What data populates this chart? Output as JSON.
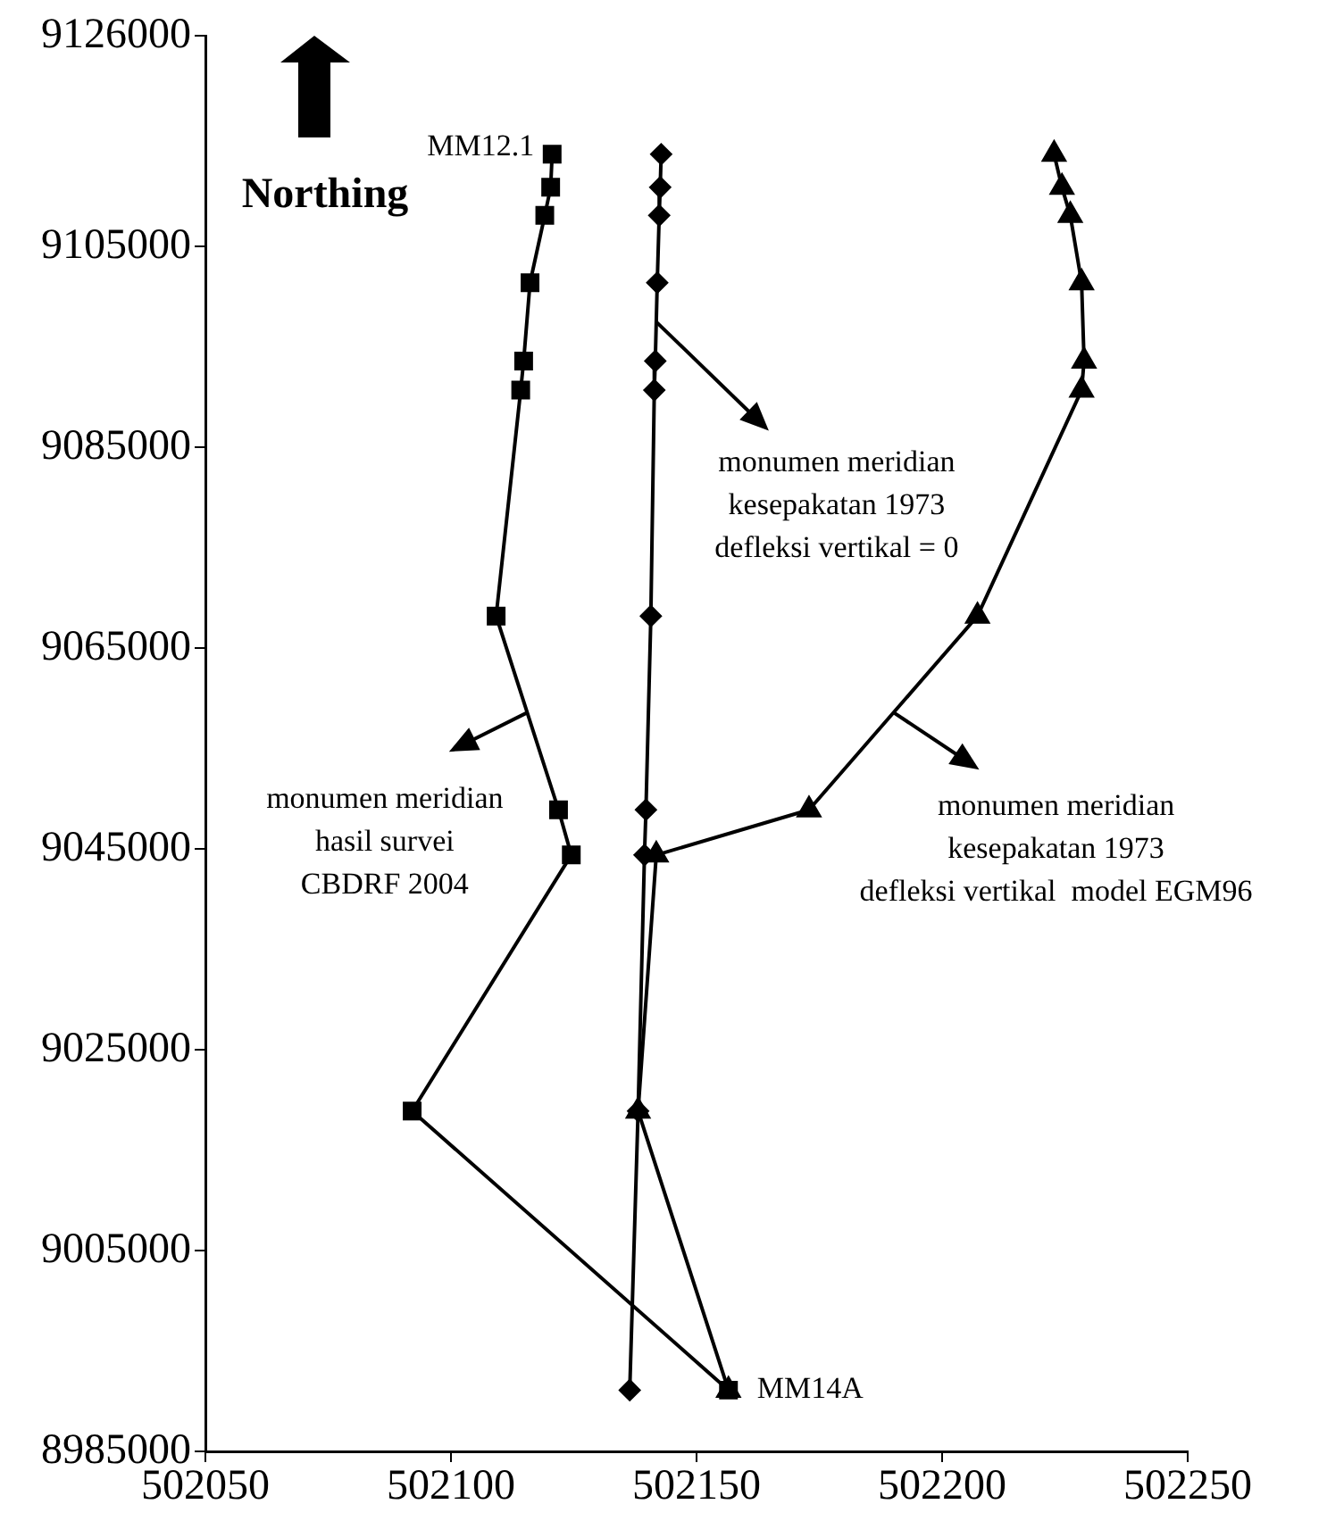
{
  "chart_data": {
    "type": "line",
    "ylabel": "Northing",
    "xlim": [
      502050,
      502250
    ],
    "xticks": [
      502050,
      502100,
      502150,
      502200,
      502250
    ],
    "ylim": [
      8985000,
      9126000
    ],
    "yticks": [
      8985000,
      9005000,
      9025000,
      9045000,
      9065000,
      9085000,
      9105000,
      9126000
    ],
    "legend": false,
    "annotations": [
      {
        "text": "monumen meridian\nhasil survei\nCBDRF 2004",
        "x": 502115.6,
        "y": 9058600
      },
      {
        "text": "monumen meridian\nkesepakatan 1973\ndefleksi vertikal = 0",
        "x": 502141.8,
        "y": 9097500
      },
      {
        "text": "monumen meridian\nkesepakatan 1973\ndefleksi vertikal  model EGM96",
        "x": 502190.1,
        "y": 9058600
      },
      {
        "text": "MM12.1",
        "x": 502120.6,
        "y": 9114200
      },
      {
        "text": "MM14A",
        "x": 502156.5,
        "y": 8991100
      }
    ],
    "series": [
      {
        "color": "#000000",
        "marker": "square",
        "x": [
          502120.6,
          502120.3,
          502119.1,
          502116.1,
          502114.8,
          502114.2,
          502109.2,
          502121.9,
          502124.5,
          502092.1,
          502156.5
        ],
        "values": [
          9114200,
          9110900,
          9108100,
          9101400,
          9093600,
          9090700,
          9068200,
          9048900,
          9044400,
          9018900,
          8991100
        ]
      },
      {
        "color": "#000000",
        "marker": "diamond",
        "x": [
          502142.8,
          502142.6,
          502142.4,
          502142.0,
          502141.6,
          502141.4,
          502140.7,
          502139.7,
          502139.4,
          502138.1,
          502136.4
        ],
        "values": [
          9114200,
          9110900,
          9108100,
          9101400,
          9093600,
          9090700,
          9068200,
          9048900,
          9044400,
          9018900,
          8991100
        ]
      },
      {
        "color": "#000000",
        "marker": "triangle",
        "x": [
          502222.8,
          502224.4,
          502226.1,
          502228.4,
          502228.9,
          502228.4,
          502207.2,
          502172.9,
          502141.8,
          502138.1,
          502156.5
        ],
        "values": [
          9114200,
          9110900,
          9108100,
          9101400,
          9093600,
          9090700,
          9068200,
          9048900,
          9044400,
          9018900,
          8991100
        ]
      }
    ]
  }
}
